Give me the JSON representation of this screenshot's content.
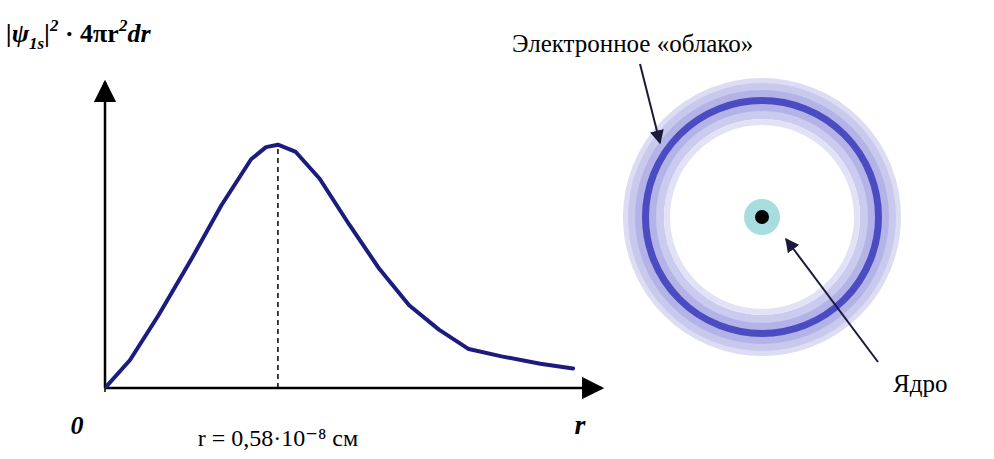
{
  "chart_data": {
    "type": "line",
    "xlabel": "r",
    "ylabel": {
      "parts": [
        {
          "text": "|ψ",
          "position": "base"
        },
        {
          "text": "1s",
          "position": "sub"
        },
        {
          "text": "|",
          "position": "base"
        },
        {
          "text": "2",
          "position": "sup"
        },
        {
          "text": " · 4πr",
          "position": "base"
        },
        {
          "text": "2",
          "position": "sup"
        },
        {
          "text": "dr",
          "position": "base"
        }
      ]
    },
    "x": [
      0,
      0.084,
      0.18,
      0.29,
      0.39,
      0.49,
      0.54,
      0.58,
      0.64,
      0.72,
      0.82,
      0.92,
      1.02,
      1.12,
      1.22,
      1.33,
      1.46,
      1.57
    ],
    "values": [
      0,
      0.115,
      0.3,
      0.53,
      0.75,
      0.94,
      0.99,
      1.0,
      0.97,
      0.86,
      0.67,
      0.49,
      0.34,
      0.24,
      0.16,
      0.13,
      0.1,
      0.08
    ],
    "color": "#1c1c7e",
    "xlim": [
      0,
      1.62
    ],
    "ylim": [
      0,
      1.2
    ],
    "xticks": [
      0
    ],
    "tick_labels": "x",
    "grid": false,
    "annotations": [
      {
        "x": 0.58,
        "text": "r = 0,58·10⁻⁸ см"
      }
    ]
  },
  "diagram": {
    "cloud_label": "Электронное «облако»",
    "nucleus_label": "Ядро"
  }
}
